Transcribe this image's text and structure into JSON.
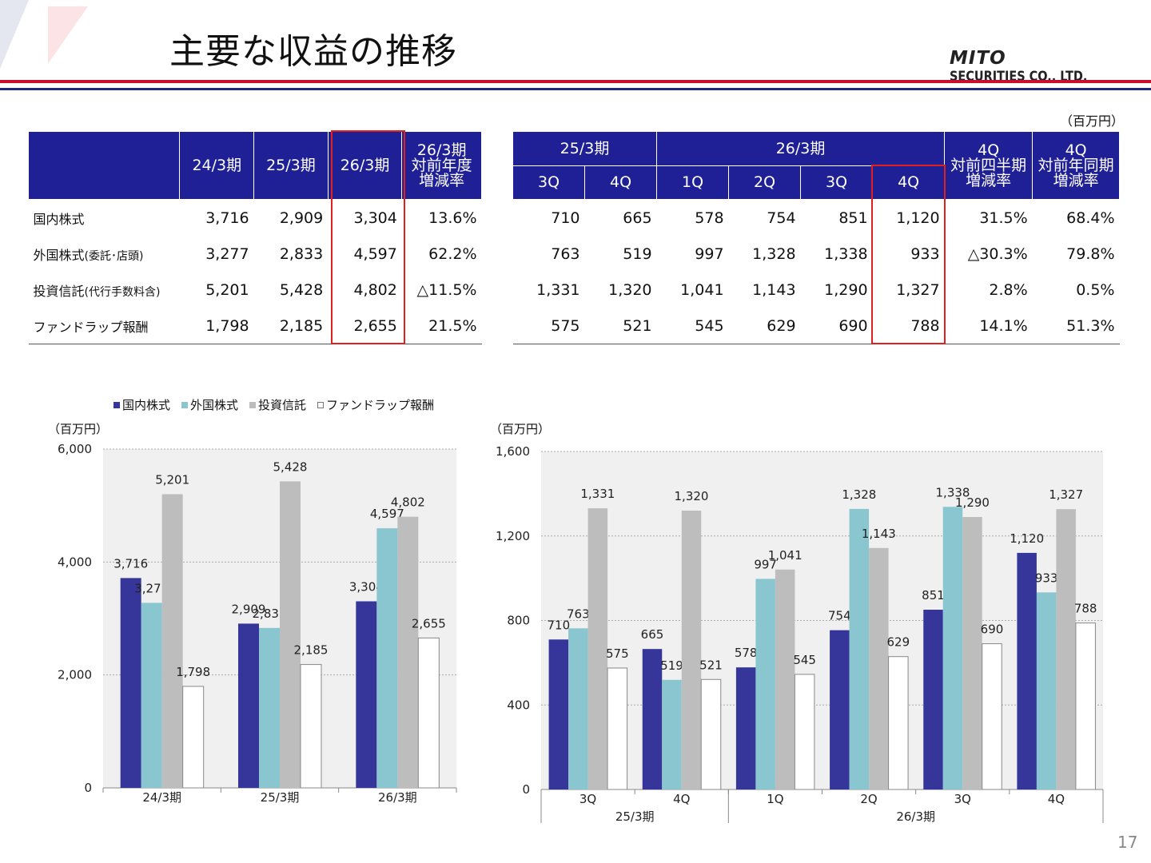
{
  "header": {
    "title": "主要な収益の推移",
    "logo_main": "MITO",
    "logo_sub": " SECURITIES CO., LTD.",
    "colors": {
      "red": "#c8102e",
      "navy": "#1f2a7a",
      "header_bg": "#1f1f96"
    }
  },
  "unit_label": "（百万円）",
  "page_number": "17",
  "table_annual": {
    "headers": [
      "24/3期",
      "25/3期",
      "26/3期"
    ],
    "rate_header": [
      "26/3期",
      "対前年度",
      "増減率"
    ],
    "rows": [
      {
        "label": "国内株式",
        "label_sub": "",
        "values": [
          "3,716",
          "2,909",
          "3,304"
        ],
        "rate": "13.6%"
      },
      {
        "label": "外国株式",
        "label_sub": "(委託･店頭)",
        "values": [
          "3,277",
          "2,833",
          "4,597"
        ],
        "rate": "62.2%"
      },
      {
        "label": "投資信託",
        "label_sub": "(代行手数料含)",
        "values": [
          "5,201",
          "5,428",
          "4,802"
        ],
        "rate": "△11.5%"
      },
      {
        "label": "ファンドラップ報酬",
        "label_sub": "",
        "values": [
          "1,798",
          "2,185",
          "2,655"
        ],
        "rate": "21.5%"
      }
    ]
  },
  "table_quarterly": {
    "period_headers": [
      "25/3期",
      "26/3期"
    ],
    "quarter_headers": [
      "3Q",
      "4Q",
      "1Q",
      "2Q",
      "3Q",
      "4Q"
    ],
    "rate_headers": [
      [
        "4Q",
        "対前四半期",
        "増減率"
      ],
      [
        "4Q",
        "対前年同期",
        "増減率"
      ]
    ],
    "rows": [
      {
        "values": [
          "710",
          "665",
          "578",
          "754",
          "851",
          "1,120"
        ],
        "rates": [
          "31.5%",
          "68.4%"
        ]
      },
      {
        "values": [
          "763",
          "519",
          "997",
          "1,328",
          "1,338",
          "933"
        ],
        "rates": [
          "△30.3%",
          "79.8%"
        ]
      },
      {
        "values": [
          "1,331",
          "1,320",
          "1,041",
          "1,143",
          "1,290",
          "1,327"
        ],
        "rates": [
          "2.8%",
          "0.5%"
        ]
      },
      {
        "values": [
          "575",
          "521",
          "545",
          "629",
          "690",
          "788"
        ],
        "rates": [
          "14.1%",
          "51.3%"
        ]
      }
    ]
  },
  "legend": [
    "国内株式",
    "外国株式",
    "投資信託",
    "ファンドラップ報酬"
  ],
  "chart_data": [
    {
      "type": "bar",
      "categories": [
        "24/3期",
        "25/3期",
        "26/3期"
      ],
      "series": [
        {
          "name": "国内株式",
          "values": [
            3716,
            2909,
            3304
          ],
          "color": "#35359a"
        },
        {
          "name": "外国株式",
          "values": [
            3277,
            2833,
            4597
          ],
          "color": "#8ac6cf"
        },
        {
          "name": "投資信託",
          "values": [
            5201,
            5428,
            4802
          ],
          "color": "#bdbdbd"
        },
        {
          "name": "ファンドラップ報酬",
          "values": [
            1798,
            2185,
            2655
          ],
          "color": "#ffffff"
        }
      ],
      "ylim": [
        0,
        6000
      ],
      "yticks": [
        "0",
        "2,000",
        "4,000",
        "6,000"
      ],
      "ylabel": "（百万円）",
      "grid": true,
      "legend_position": "top"
    },
    {
      "type": "bar",
      "categories": [
        "3Q",
        "4Q",
        "1Q",
        "2Q",
        "3Q",
        "4Q"
      ],
      "groups": [
        "25/3期",
        "26/3期"
      ],
      "series": [
        {
          "name": "国内株式",
          "values": [
            710,
            665,
            578,
            754,
            851,
            1120
          ],
          "color": "#35359a"
        },
        {
          "name": "外国株式",
          "values": [
            763,
            519,
            997,
            1328,
            1338,
            933
          ],
          "color": "#8ac6cf"
        },
        {
          "name": "投資信託",
          "values": [
            1331,
            1320,
            1041,
            1143,
            1290,
            1327
          ],
          "color": "#bdbdbd"
        },
        {
          "name": "ファンドラップ報酬",
          "values": [
            575,
            521,
            545,
            629,
            690,
            788
          ],
          "color": "#ffffff"
        }
      ],
      "ylim": [
        0,
        1600
      ],
      "yticks": [
        "0",
        "400",
        "800",
        "1,200",
        "1,600"
      ],
      "ylabel": "（百万円）",
      "grid": true
    }
  ]
}
